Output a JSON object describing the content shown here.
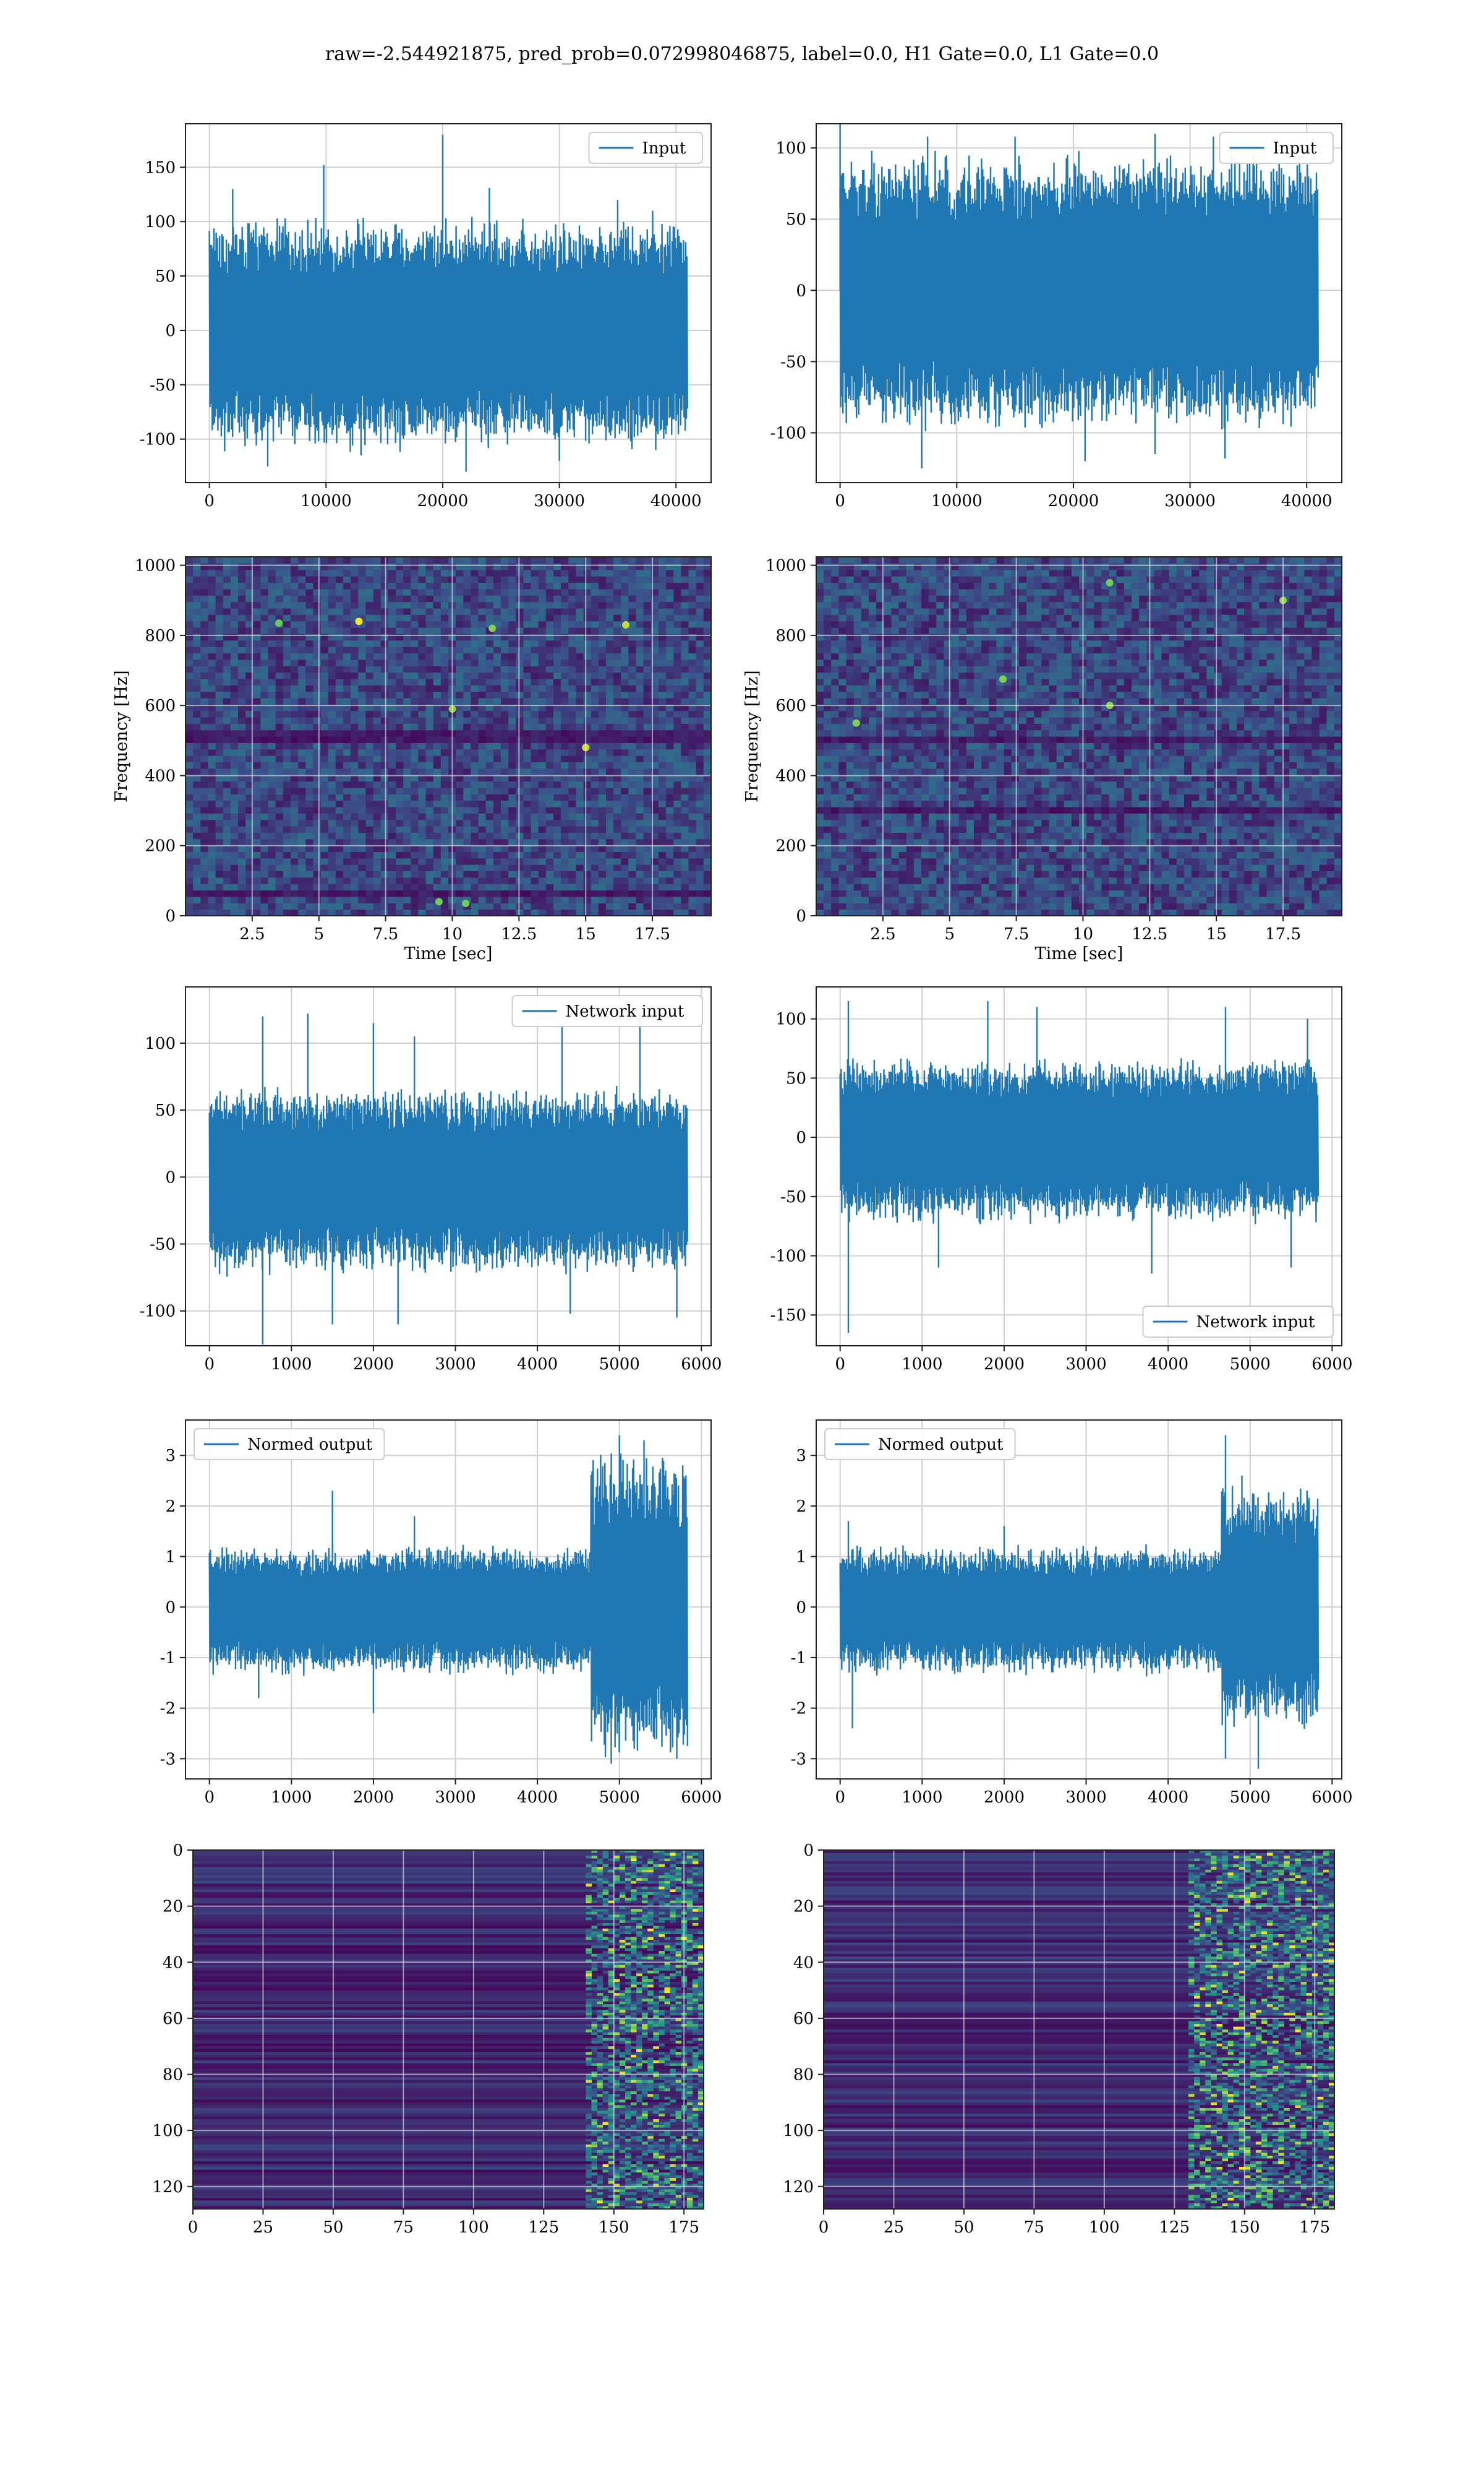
{
  "figure": {
    "suptitle": "raw=-2.544921875, pred_prob=0.072998046875, label=0.0, H1 Gate=0.0, L1 Gate=0.0"
  },
  "colors": {
    "series": "#1f77b4",
    "grid": "#d0d0d0",
    "viridis_dark": "#440154",
    "viridis_mid": "#21918c",
    "viridis_bright": "#fde725"
  },
  "chart_data": [
    {
      "id": "r1c1",
      "type": "line",
      "xlim": [
        -2048,
        43008
      ],
      "ylim": [
        -140,
        190
      ],
      "xticks": [
        0,
        10000,
        20000,
        30000,
        40000
      ],
      "yticks": [
        -100,
        -50,
        0,
        50,
        100,
        150
      ],
      "xlabel": "",
      "ylabel": "",
      "legend": "top-right",
      "series": [
        {
          "name": "Input",
          "n_samples": 40960,
          "envelope_upper": 85,
          "envelope_lower": -90,
          "spikes": [
            [
              20000,
              180
            ],
            [
              9800,
              152
            ],
            [
              2000,
              130
            ],
            [
              24000,
              131
            ],
            [
              35000,
              120
            ],
            [
              38000,
              110
            ]
          ],
          "dips": [
            [
              5000,
              -125
            ],
            [
              22000,
              -130
            ],
            [
              30000,
              -120
            ],
            [
              13000,
              -115
            ]
          ]
        }
      ],
      "grid": true
    },
    {
      "id": "r1c2",
      "type": "line",
      "xlim": [
        -2048,
        43008
      ],
      "ylim": [
        -135,
        117
      ],
      "xticks": [
        0,
        10000,
        20000,
        30000,
        40000
      ],
      "yticks": [
        -100,
        -50,
        0,
        50,
        100
      ],
      "xlabel": "",
      "ylabel": "",
      "legend": "top-right",
      "series": [
        {
          "name": "Input",
          "n_samples": 40960,
          "envelope_upper": 80,
          "envelope_lower": -80,
          "spikes": [
            [
              0,
              117
            ],
            [
              7500,
              108
            ],
            [
              15000,
              108
            ],
            [
              27000,
              110
            ],
            [
              32000,
              108
            ]
          ],
          "dips": [
            [
              7000,
              -125
            ],
            [
              21000,
              -120
            ],
            [
              27000,
              -115
            ],
            [
              33000,
              -118
            ]
          ]
        }
      ],
      "grid": true
    },
    {
      "id": "r2c1",
      "type": "heatmap",
      "xlim": [
        0,
        19.7
      ],
      "ylim": [
        0,
        1024
      ],
      "xticks": [
        2.5,
        5.0,
        7.5,
        10.0,
        12.5,
        15.0,
        17.5
      ],
      "yticks": [
        0,
        200,
        400,
        600,
        800,
        1000
      ],
      "xlabel": "Time [sec]",
      "ylabel": "Frequency [Hz]",
      "colormap": "viridis",
      "dark_bands_hz": [
        510,
        60
      ],
      "hot_spots": [
        [
          9.5,
          40
        ],
        [
          10.5,
          35
        ],
        [
          11.5,
          820
        ],
        [
          16.5,
          830
        ],
        [
          3.5,
          835
        ],
        [
          6.5,
          840
        ],
        [
          15,
          480
        ],
        [
          10,
          590
        ]
      ],
      "grid": true
    },
    {
      "id": "r2c2",
      "type": "heatmap",
      "xlim": [
        0,
        19.7
      ],
      "ylim": [
        0,
        1024
      ],
      "xticks": [
        2.5,
        5.0,
        7.5,
        10.0,
        12.5,
        15.0,
        17.5
      ],
      "yticks": [
        0,
        200,
        400,
        600,
        800,
        1000
      ],
      "xlabel": "Time [sec]",
      "ylabel": "Frequency [Hz]",
      "colormap": "viridis",
      "dark_bands_hz": [
        500,
        300
      ],
      "hot_spots": [
        [
          1.5,
          550
        ],
        [
          11,
          600
        ],
        [
          17.5,
          900
        ],
        [
          11,
          950
        ],
        [
          7,
          675
        ]
      ],
      "grid": true
    },
    {
      "id": "r3c1",
      "type": "line",
      "xlim": [
        -292,
        6118
      ],
      "ylim": [
        -126,
        142
      ],
      "xticks": [
        0,
        1000,
        2000,
        3000,
        4000,
        5000,
        6000
      ],
      "yticks": [
        -100,
        -50,
        0,
        50,
        100
      ],
      "xlabel": "",
      "ylabel": "",
      "legend": "top-right",
      "series": [
        {
          "name": "Network input",
          "n_samples": 5826,
          "envelope_upper": 55,
          "envelope_lower": -60,
          "spikes": [
            [
              650,
              120
            ],
            [
              1200,
              122
            ],
            [
              2000,
              115
            ],
            [
              2500,
              105
            ],
            [
              4300,
              112
            ],
            [
              5250,
              122
            ]
          ],
          "dips": [
            [
              650,
              -125
            ],
            [
              1500,
              -110
            ],
            [
              2300,
              -110
            ],
            [
              4400,
              -102
            ],
            [
              5700,
              -105
            ]
          ]
        }
      ],
      "grid": true
    },
    {
      "id": "r3c2",
      "type": "line",
      "xlim": [
        -292,
        6118
      ],
      "ylim": [
        -176,
        127
      ],
      "xticks": [
        0,
        1000,
        2000,
        3000,
        4000,
        5000,
        6000
      ],
      "yticks": [
        -150,
        -100,
        -50,
        0,
        50,
        100
      ],
      "xlabel": "",
      "ylabel": "",
      "legend": "bottom-right",
      "series": [
        {
          "name": "Network input",
          "n_samples": 5826,
          "envelope_upper": 55,
          "envelope_lower": -60,
          "spikes": [
            [
              100,
              115
            ],
            [
              1800,
              115
            ],
            [
              2400,
              110
            ],
            [
              4700,
              110
            ],
            [
              5700,
              100
            ]
          ],
          "dips": [
            [
              100,
              -165
            ],
            [
              1200,
              -110
            ],
            [
              3800,
              -115
            ],
            [
              5500,
              -110
            ]
          ]
        }
      ],
      "grid": true
    },
    {
      "id": "r4c1",
      "type": "line",
      "xlim": [
        -292,
        6118
      ],
      "ylim": [
        -3.4,
        3.7
      ],
      "xticks": [
        0,
        1000,
        2000,
        3000,
        4000,
        5000,
        6000
      ],
      "yticks": [
        -3,
        -2,
        -1,
        0,
        1,
        2,
        3
      ],
      "xlabel": "",
      "ylabel": "",
      "legend": "top-left",
      "series": [
        {
          "name": "Normed output",
          "n_samples": 5826,
          "envelope_upper": 1.0,
          "envelope_lower": -1.1,
          "late_start": 4650,
          "late_upper": 2.5,
          "late_lower": -2.4,
          "spikes": [
            [
              1500,
              2.3
            ],
            [
              5000,
              3.4
            ],
            [
              5300,
              3.3
            ],
            [
              2500,
              1.8
            ]
          ],
          "dips": [
            [
              4900,
              -3.1
            ],
            [
              5700,
              -3.0
            ],
            [
              2000,
              -2.1
            ],
            [
              600,
              -1.8
            ]
          ]
        }
      ],
      "grid": true
    },
    {
      "id": "r4c2",
      "type": "line",
      "xlim": [
        -292,
        6118
      ],
      "ylim": [
        -3.4,
        3.7
      ],
      "xticks": [
        0,
        1000,
        2000,
        3000,
        4000,
        5000,
        6000
      ],
      "yticks": [
        -3,
        -2,
        -1,
        0,
        1,
        2,
        3
      ],
      "xlabel": "",
      "ylabel": "",
      "legend": "top-left",
      "series": [
        {
          "name": "Normed output",
          "n_samples": 5826,
          "envelope_upper": 1.0,
          "envelope_lower": -1.1,
          "late_start": 4650,
          "late_upper": 2.0,
          "late_lower": -2.0,
          "spikes": [
            [
              4700,
              3.4
            ],
            [
              100,
              1.7
            ],
            [
              2000,
              1.6
            ],
            [
              4900,
              2.6
            ]
          ],
          "dips": [
            [
              4700,
              -3.0
            ],
            [
              5100,
              -3.2
            ],
            [
              150,
              -2.4
            ]
          ]
        }
      ],
      "grid": true
    },
    {
      "id": "r5c1",
      "type": "heatmap",
      "xlim": [
        0,
        182
      ],
      "ylim": [
        128,
        0
      ],
      "xticks": [
        0,
        25,
        50,
        75,
        100,
        125,
        150,
        175
      ],
      "yticks": [
        0,
        20,
        40,
        60,
        80,
        100,
        120
      ],
      "xlabel": "",
      "ylabel": "",
      "colormap": "viridis",
      "active_from_x": 140,
      "grid": true
    },
    {
      "id": "r5c2",
      "type": "heatmap",
      "xlim": [
        0,
        182
      ],
      "ylim": [
        128,
        0
      ],
      "xticks": [
        0,
        25,
        50,
        75,
        100,
        125,
        150,
        175
      ],
      "yticks": [
        0,
        20,
        40,
        60,
        80,
        100,
        120
      ],
      "xlabel": "",
      "ylabel": "",
      "colormap": "viridis",
      "active_from_x": 130,
      "grid": true
    }
  ]
}
